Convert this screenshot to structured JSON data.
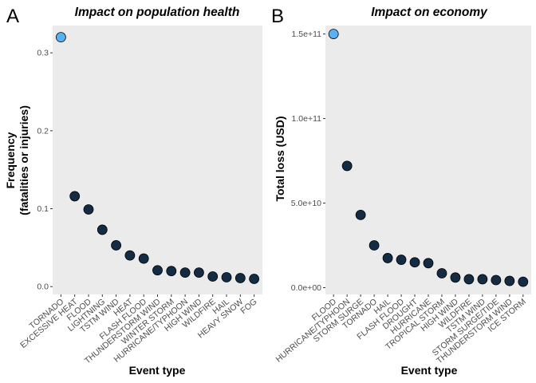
{
  "chart_data": [
    {
      "type": "scatter",
      "panel_label": "A",
      "title": "Impact on population health",
      "xlabel": "Event type",
      "ylabel_lines": [
        "Frequency",
        "(fatalities or injuries)"
      ],
      "categories": [
        "TORNADO",
        "EXCESSIVE HEAT",
        "FLOOD",
        "LIGHTNING",
        "TSTM WIND",
        "HEAT",
        "FLASH FLOOD",
        "THUNDERSTORM WIND",
        "WINTER STORM",
        "HURRICANE/TYPHOON",
        "HIGH WIND",
        "WILDFIRE",
        "HAIL",
        "HEAVY SNOW",
        "FOG"
      ],
      "values": [
        0.32,
        0.116,
        0.099,
        0.073,
        0.053,
        0.04,
        0.036,
        0.021,
        0.02,
        0.018,
        0.018,
        0.013,
        0.012,
        0.011,
        0.01
      ],
      "ylim": [
        -0.01,
        0.335
      ],
      "yticks": [
        0.0,
        0.1,
        0.2,
        0.3
      ],
      "ytick_labels": [
        "0.0",
        "0.1",
        "0.2",
        "0.3"
      ],
      "highlight_index": 0,
      "grid": false
    },
    {
      "type": "scatter",
      "panel_label": "B",
      "title": "Impact on economy",
      "xlabel": "Event type",
      "ylabel_lines": [
        "Total loss (USD)"
      ],
      "categories": [
        "FLOOD",
        "HURRICANE/TYPHOON",
        "STORM SURGE",
        "TORNADO",
        "HAIL",
        "FLASH FLOOD",
        "DROUGHT",
        "HURRICANE",
        "TROPICAL STORM",
        "HIGH WIND",
        "WILDFIRE",
        "TSTM WIND",
        "STORM SURGE/TIDE",
        "THUNDERSTORM WIND",
        "ICE STORM"
      ],
      "values": [
        150000000000,
        72000000000,
        43000000000,
        25000000000,
        17500000000,
        16500000000,
        15000000000,
        14500000000,
        8500000000,
        6000000000,
        5000000000,
        5000000000,
        4500000000,
        4000000000,
        3500000000
      ],
      "ylim": [
        -4000000000,
        155000000000
      ],
      "yticks": [
        0,
        50000000000,
        100000000000,
        150000000000
      ],
      "ytick_labels": [
        "0.0e+00",
        "5.0e+10",
        "1.0e+11",
        "1.5e+11"
      ],
      "highlight_index": 0,
      "grid": false
    }
  ],
  "colors": {
    "panel_bg": "#ebebeb",
    "point_fill": "#132b43",
    "highlight_fill": "#56b1f7",
    "point_stroke": "#000000",
    "tick": "#333333",
    "tick_label": "#4d4d4d",
    "text": "#000000"
  }
}
